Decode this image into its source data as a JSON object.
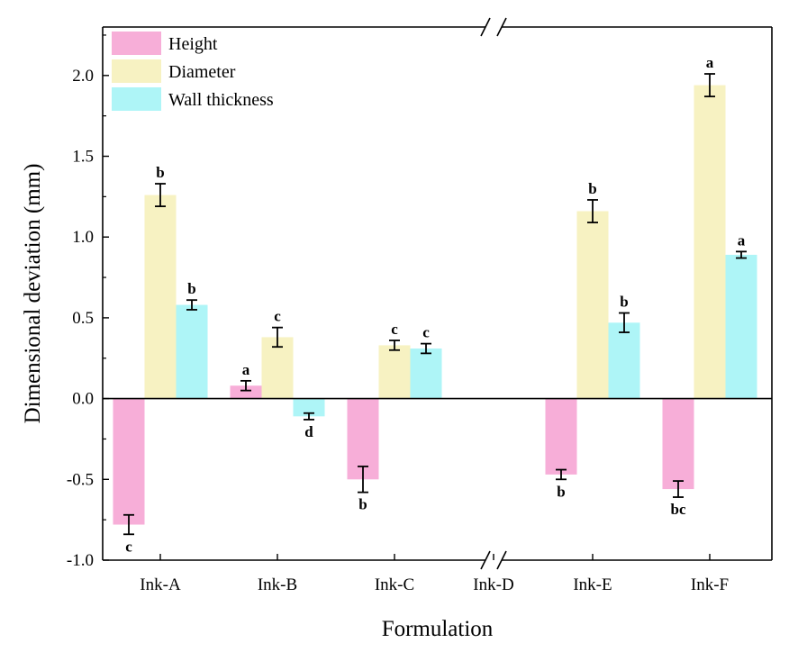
{
  "chart_data": {
    "type": "bar",
    "title": "",
    "xlabel": "Formulation",
    "ylabel": "Dimensional deviation (mm)",
    "ylim": [
      -1.0,
      2.3
    ],
    "yticks": [
      "-1.0",
      "-0.5",
      "0.0",
      "0.5",
      "1.0",
      "1.5",
      "2.0"
    ],
    "ytick_values": [
      -1.0,
      -0.5,
      0.0,
      0.5,
      1.0,
      1.5,
      2.0
    ],
    "categories": [
      "Ink-A",
      "Ink-B",
      "Ink-C",
      "Ink-D",
      "Ink-E",
      "Ink-F"
    ],
    "axis_break_between": [
      "Ink-C",
      "Ink-E"
    ],
    "legend_position": "top-left",
    "series": [
      {
        "name": "Height",
        "color": "#f7aed8",
        "values": [
          -0.78,
          0.08,
          -0.5,
          null,
          -0.47,
          -0.56
        ],
        "errors": [
          0.06,
          0.03,
          0.08,
          null,
          0.03,
          0.05
        ],
        "labels": [
          "c",
          "a",
          "b",
          "",
          "b",
          "bc"
        ]
      },
      {
        "name": "Diameter",
        "color": "#f7f2c2",
        "values": [
          1.26,
          0.38,
          0.33,
          null,
          1.16,
          1.94
        ],
        "errors": [
          0.07,
          0.06,
          0.03,
          null,
          0.07,
          0.07
        ],
        "labels": [
          "b",
          "c",
          "c",
          "",
          "b",
          "a"
        ]
      },
      {
        "name": "Wall thickness",
        "color": "#aef5f7",
        "values": [
          0.58,
          -0.11,
          0.31,
          null,
          0.47,
          0.89
        ],
        "errors": [
          0.03,
          0.02,
          0.03,
          null,
          0.06,
          0.02
        ],
        "labels": [
          "b",
          "d",
          "c",
          "",
          "b",
          "a"
        ]
      }
    ]
  }
}
